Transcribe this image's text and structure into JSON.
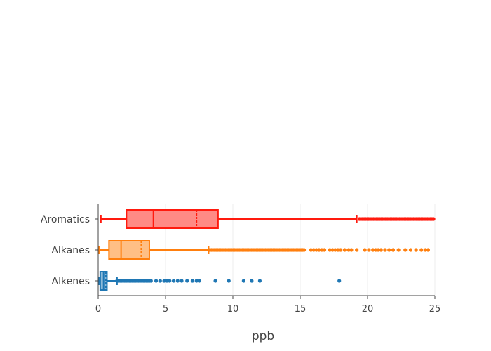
{
  "chart_data": {
    "type": "box",
    "orientation": "horizontal",
    "xlabel": "ppb",
    "xlim": [
      0,
      25
    ],
    "x_ticks": [
      0,
      5,
      10,
      15,
      20,
      25
    ],
    "x_tick_labels": [
      "0",
      "5",
      "10",
      "15",
      "20",
      "25"
    ],
    "grid": true,
    "categories": [
      "Aromatics",
      "Alkanes",
      "Alkenes"
    ],
    "series": [
      {
        "category": "Aromatics",
        "color": "#ff1a0e",
        "fill": "#ff8a85",
        "whisker_low": 0.2,
        "q1": 2.1,
        "median": 4.1,
        "mean": 7.3,
        "q3": 8.9,
        "whisker_high": 19.2,
        "outliers_dense_from": 19.4,
        "outliers_dense_to": 25.0,
        "outliers": []
      },
      {
        "category": "Alkanes",
        "color": "#ff7f0e",
        "fill": "#ffbf85",
        "whisker_low": 0.05,
        "q1": 0.8,
        "median": 1.7,
        "mean": 3.2,
        "q3": 3.8,
        "whisker_high": 8.2,
        "outliers_dense_from": 8.3,
        "outliers_dense_to": 15.3,
        "outliers": [
          15.8,
          16.0,
          16.2,
          16.4,
          16.6,
          16.8,
          17.2,
          17.4,
          17.6,
          17.8,
          18.0,
          18.3,
          18.6,
          18.8,
          19.2,
          19.8,
          20.1,
          20.4,
          20.6,
          20.8,
          21.0,
          21.3,
          21.6,
          21.9,
          22.3,
          22.8,
          23.2,
          23.6,
          24.0,
          24.3,
          24.5
        ]
      },
      {
        "category": "Alkenes",
        "color": "#1f77b4",
        "fill": "#8fbbd9",
        "whisker_low": 0.05,
        "q1": 0.15,
        "median": 0.4,
        "mean": 0.55,
        "q3": 0.65,
        "whisker_high": 1.4,
        "outliers_dense_from": 1.4,
        "outliers_dense_to": 4.0,
        "outliers": [
          4.3,
          4.6,
          4.9,
          5.1,
          5.3,
          5.6,
          5.9,
          6.2,
          6.6,
          7.0,
          7.3,
          7.5,
          8.7,
          9.7,
          10.8,
          11.4,
          12.0,
          17.9
        ]
      }
    ]
  }
}
